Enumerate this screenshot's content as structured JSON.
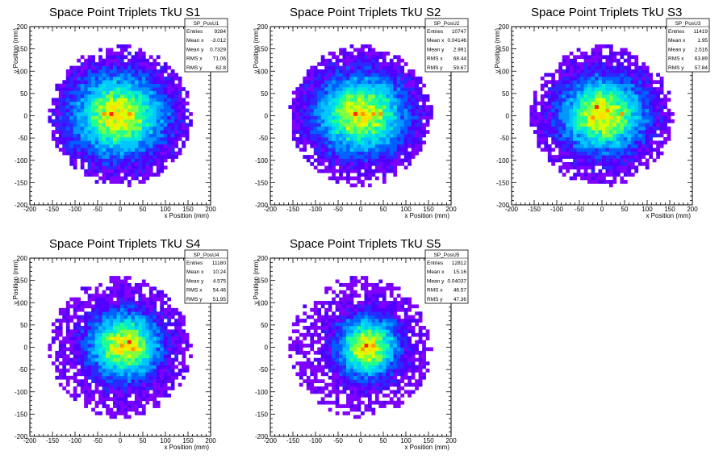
{
  "chart_data": [
    {
      "type": "heatmap",
      "title": "Space Point Triplets TkU S1",
      "xlabel": "x Position (mm)",
      "ylabel": "y Position (mm)",
      "xlim": [
        -200,
        200
      ],
      "ylim": [
        -200,
        200
      ],
      "xticks": [
        "-200",
        "-150",
        "-100",
        "-50",
        "0",
        "50",
        "100",
        "150",
        "200"
      ],
      "yticks": [
        "-200",
        "-150",
        "-100",
        "-50",
        "0",
        "50",
        "100",
        "150",
        "200"
      ],
      "stats": {
        "name": "SP_PosU1",
        "rows": [
          [
            "Entries",
            "9284"
          ],
          [
            "Mean x",
            "-3.012"
          ],
          [
            "Mean y",
            "0.7329"
          ],
          [
            "RMS x",
            "71.06"
          ],
          [
            "RMS y",
            "62.8"
          ]
        ]
      },
      "distribution": {
        "mean_x": -3.012,
        "mean_y": 0.7329,
        "rms_x": 71.06,
        "rms_y": 62.8,
        "entries": 9284,
        "radius": 160,
        "bin_width": 8
      },
      "peak_bins": [
        [
          -20,
          0
        ],
        [
          -40,
          0
        ],
        [
          20,
          5
        ]
      ]
    },
    {
      "type": "heatmap",
      "title": "Space Point Triplets TkU S2",
      "xlabel": "x Position (mm)",
      "ylabel": "y Position (mm)",
      "xlim": [
        -200,
        200
      ],
      "ylim": [
        -200,
        200
      ],
      "xticks": [
        "-200",
        "-150",
        "-100",
        "-50",
        "0",
        "50",
        "100",
        "150",
        "200"
      ],
      "yticks": [
        "-200",
        "-150",
        "-100",
        "-50",
        "0",
        "50",
        "100",
        "150",
        "200"
      ],
      "stats": {
        "name": "SP_PosU2",
        "rows": [
          [
            "Entries",
            "10747"
          ],
          [
            "Mean x",
            "0.04146"
          ],
          [
            "Mean y",
            "2.991"
          ],
          [
            "RMS x",
            "68.44"
          ],
          [
            "RMS y",
            "59.67"
          ]
        ]
      },
      "distribution": {
        "mean_x": 0.04146,
        "mean_y": 2.991,
        "rms_x": 68.44,
        "rms_y": 59.67,
        "entries": 10747,
        "radius": 160,
        "bin_width": 8
      },
      "peak_bins": [
        [
          -15,
          3
        ],
        [
          5,
          5
        ],
        [
          25,
          3
        ],
        [
          45,
          4
        ]
      ]
    },
    {
      "type": "heatmap",
      "title": "Space Point Triplets TkU S3",
      "xlabel": "x Position (mm)",
      "ylabel": "y Position (mm)",
      "xlim": [
        -200,
        200
      ],
      "ylim": [
        -200,
        200
      ],
      "xticks": [
        "-200",
        "-150",
        "-100",
        "-50",
        "0",
        "50",
        "100",
        "150",
        "200"
      ],
      "yticks": [
        "-200",
        "-150",
        "-100",
        "-50",
        "0",
        "50",
        "100",
        "150",
        "200"
      ],
      "stats": {
        "name": "SP_PosU3",
        "rows": [
          [
            "Entries",
            "11419"
          ],
          [
            "Mean x",
            "1.95"
          ],
          [
            "Mean y",
            "2.516"
          ],
          [
            "RMS x",
            "63.89"
          ],
          [
            "RMS y",
            "57.84"
          ]
        ]
      },
      "distribution": {
        "mean_x": 1.95,
        "mean_y": 2.516,
        "rms_x": 63.89,
        "rms_y": 57.84,
        "entries": 11419,
        "radius": 160,
        "bin_width": 8
      },
      "peak_bins": [
        [
          -10,
          20
        ],
        [
          -20,
          -5
        ],
        [
          40,
          5
        ],
        [
          15,
          10
        ]
      ]
    },
    {
      "type": "heatmap",
      "title": "Space Point Triplets TkU S4",
      "xlabel": "x Position (mm)",
      "ylabel": "y Position (mm)",
      "xlim": [
        -200,
        200
      ],
      "ylim": [
        -200,
        200
      ],
      "xticks": [
        "-200",
        "-150",
        "-100",
        "-50",
        "0",
        "50",
        "100",
        "150",
        "200"
      ],
      "yticks": [
        "-200",
        "-150",
        "-100",
        "-50",
        "0",
        "50",
        "100",
        "150",
        "200"
      ],
      "stats": {
        "name": "SP_PosU4",
        "rows": [
          [
            "Entries",
            "11180"
          ],
          [
            "Mean x",
            "10.24"
          ],
          [
            "Mean y",
            "4.575"
          ],
          [
            "RMS x",
            "54.46"
          ],
          [
            "RMS y",
            "51.95"
          ]
        ]
      },
      "distribution": {
        "mean_x": 10.24,
        "mean_y": 4.575,
        "rms_x": 54.46,
        "rms_y": 51.95,
        "entries": 11180,
        "radius": 160,
        "bin_width": 8
      },
      "peak_bins": [
        [
          20,
          10
        ],
        [
          0,
          0
        ],
        [
          25,
          -5
        ]
      ]
    },
    {
      "type": "heatmap",
      "title": "Space Point Triplets TkU S5",
      "xlabel": "x Position (mm)",
      "ylabel": "y Position (mm)",
      "xlim": [
        -200,
        200
      ],
      "ylim": [
        -200,
        200
      ],
      "xticks": [
        "-200",
        "-150",
        "-100",
        "-50",
        "0",
        "50",
        "100",
        "150",
        "200"
      ],
      "yticks": [
        "-200",
        "-150",
        "-100",
        "-50",
        "0",
        "50",
        "100",
        "150",
        "200"
      ],
      "stats": {
        "name": "SP_PosU5",
        "rows": [
          [
            "Entries",
            "12812"
          ],
          [
            "Mean x",
            "15.16"
          ],
          [
            "Mean y",
            "0.04037"
          ],
          [
            "RMS x",
            "46.57"
          ],
          [
            "RMS y",
            "47.36"
          ]
        ]
      },
      "distribution": {
        "mean_x": 15.16,
        "mean_y": 0.04037,
        "rms_x": 46.57,
        "rms_y": 47.36,
        "entries": 12812,
        "radius": 160,
        "bin_width": 8
      },
      "peak_bins": [
        [
          15,
          5
        ],
        [
          30,
          5
        ],
        [
          5,
          -5
        ]
      ]
    }
  ],
  "colors": {
    "palette": [
      "#7e00ff",
      "#5000ff",
      "#2a28ff",
      "#0060ff",
      "#0098ff",
      "#00c8ff",
      "#00e8d8",
      "#20ff90",
      "#80ff40",
      "#d8ff00",
      "#ffe000",
      "#ff9800",
      "#ff2800"
    ],
    "frame": "#000000",
    "stat_box_fill": "#ffffff"
  }
}
